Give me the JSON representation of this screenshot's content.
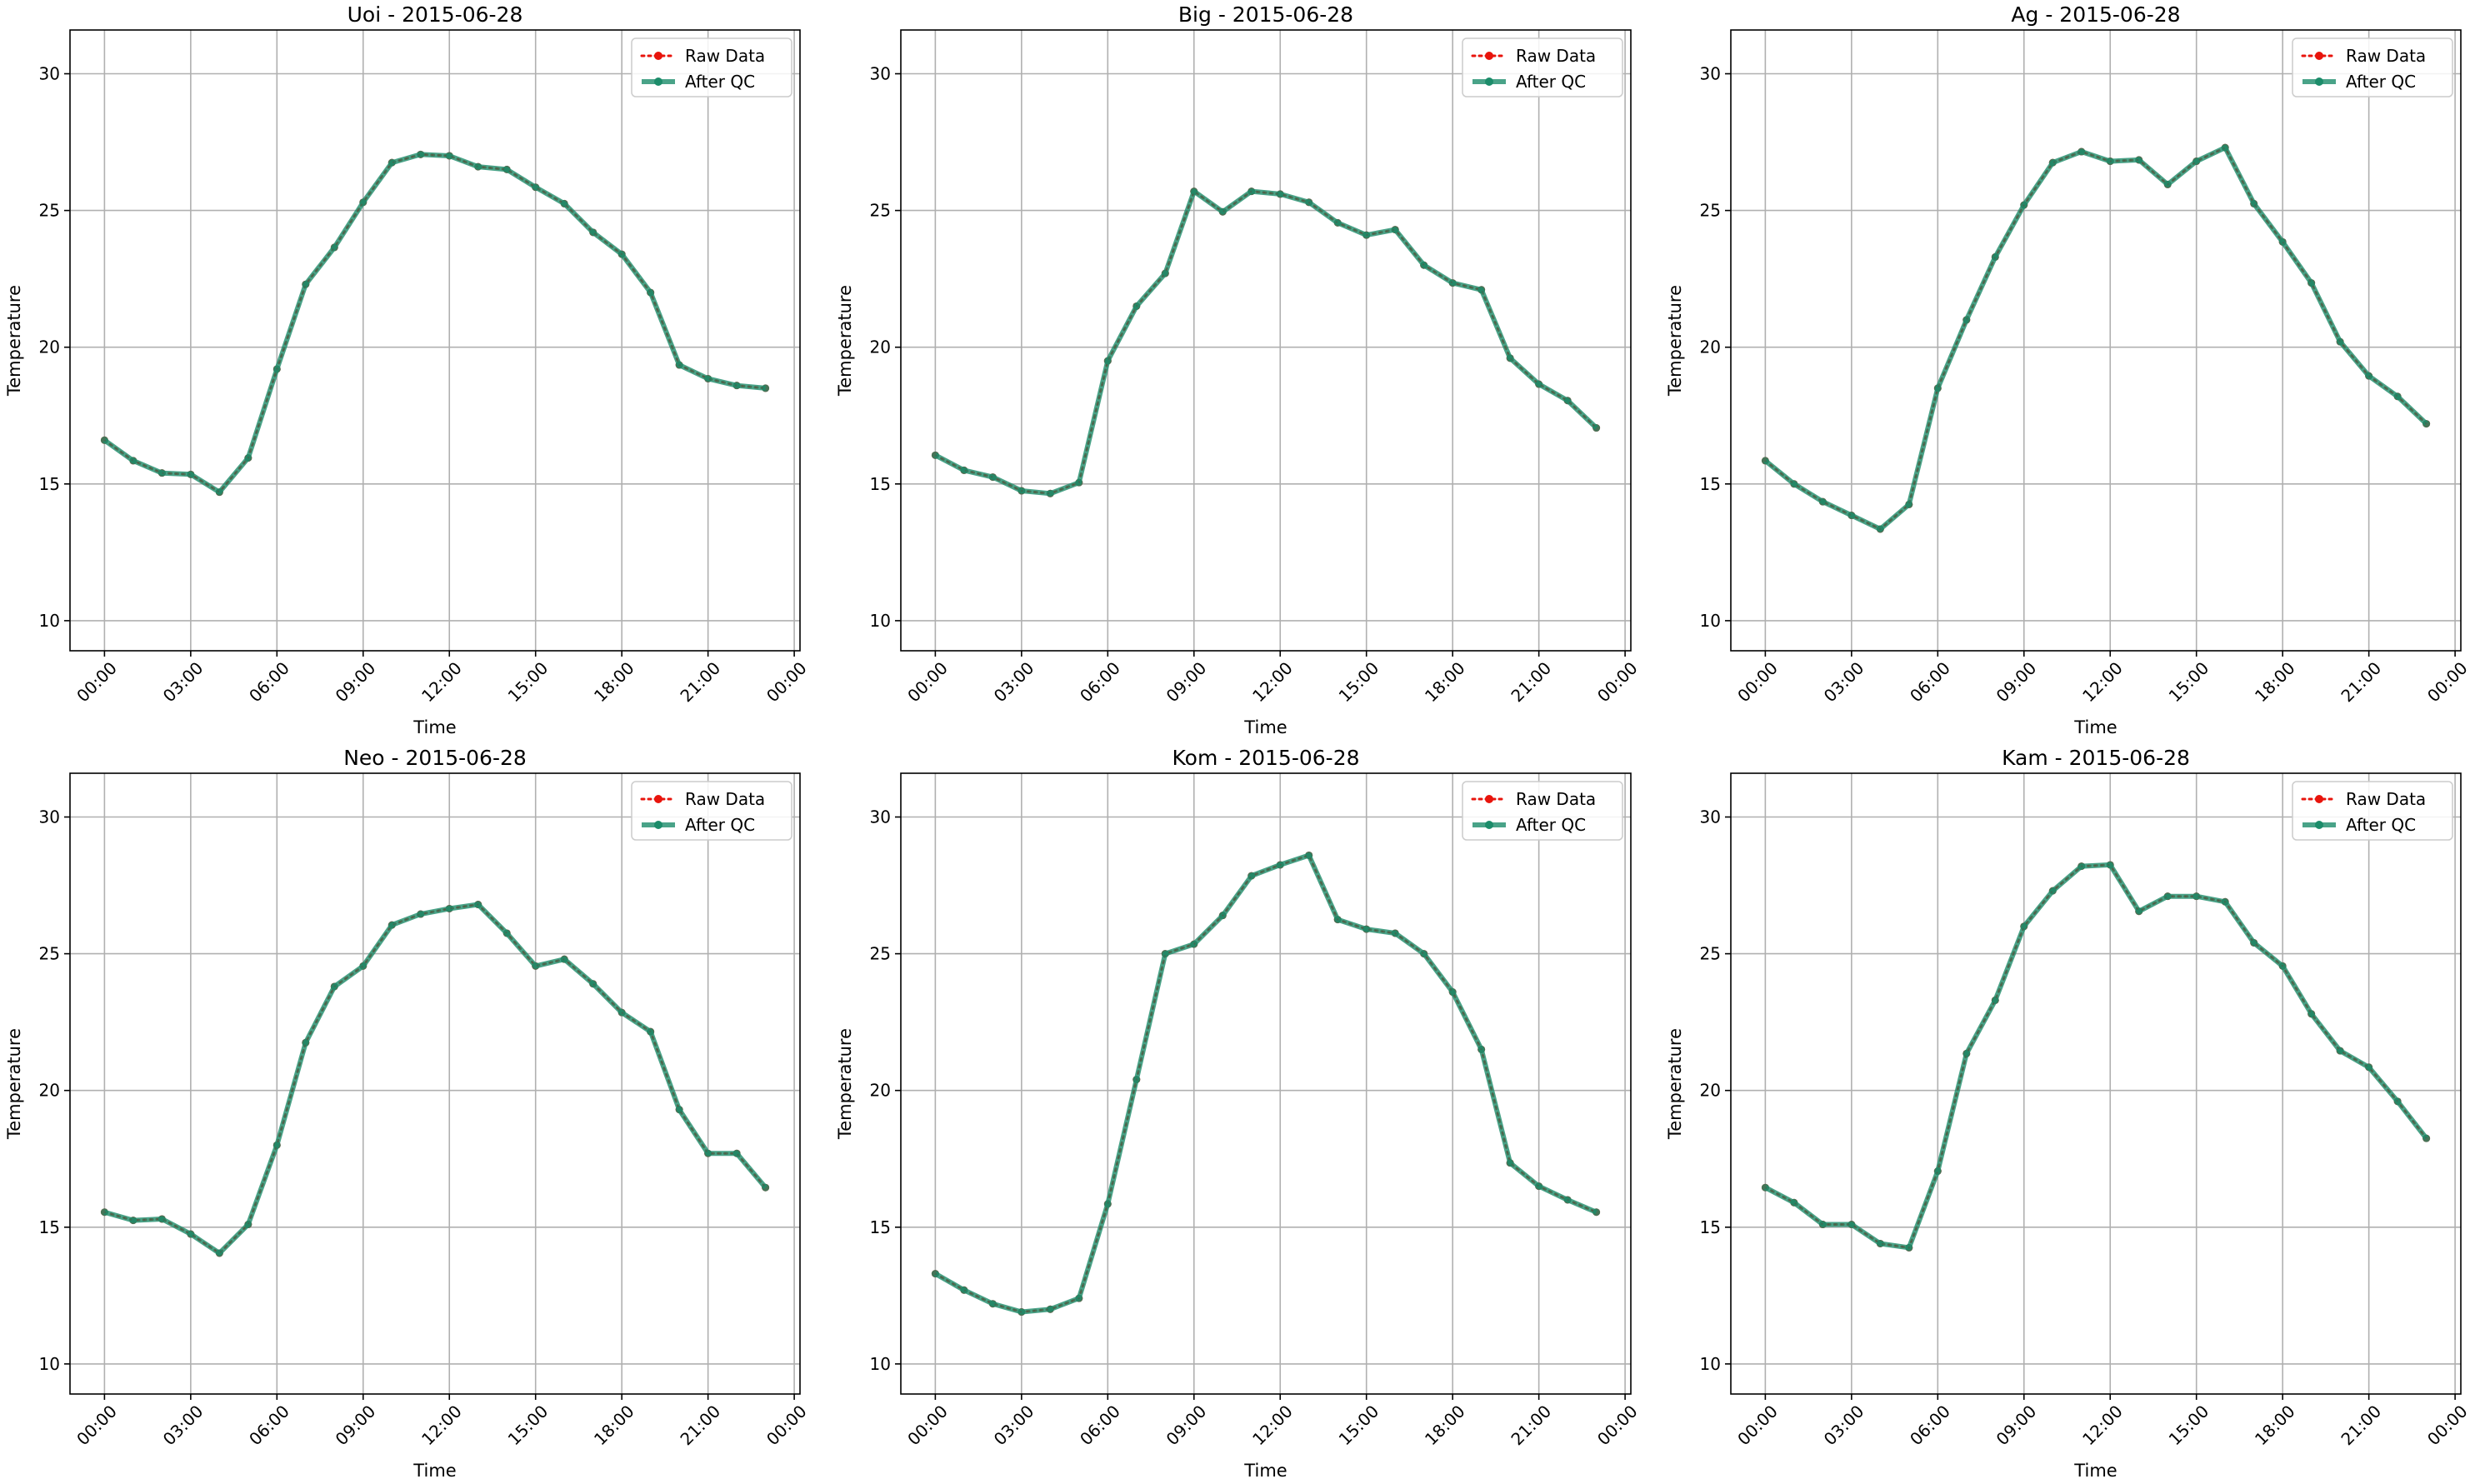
{
  "chart_data": [
    {
      "type": "line",
      "title": "Uoi - 2015-06-28",
      "xlabel": "Time",
      "ylabel": "Temperature",
      "ylim": [
        8.9,
        31.6
      ],
      "y_ticks": [
        10,
        15,
        20,
        25,
        30
      ],
      "x_ticks": [
        "00:00",
        "03:00",
        "06:00",
        "09:00",
        "12:00",
        "15:00",
        "18:00",
        "21:00",
        "00:00"
      ],
      "x_hours": [
        0,
        3,
        6,
        9,
        12,
        15,
        18,
        21,
        24
      ],
      "xlim": [
        -1.2,
        24.2
      ],
      "grid": true,
      "legend_position": "top-right",
      "x": [
        0,
        1,
        2,
        3,
        4,
        5,
        6,
        7,
        8,
        9,
        10,
        11,
        12,
        13,
        14,
        15,
        16,
        17,
        18,
        19,
        20,
        21,
        22,
        23
      ],
      "series": [
        {
          "name": "Raw Data",
          "style": "dotted-marker",
          "color": "#e8140c",
          "values": [
            16.6,
            15.85,
            15.4,
            15.35,
            14.7,
            15.95,
            19.2,
            22.3,
            23.65,
            25.3,
            26.75,
            27.05,
            27.0,
            26.6,
            26.5,
            25.85,
            25.25,
            24.2,
            23.4,
            22.0,
            19.35,
            18.85,
            18.6,
            18.5
          ]
        },
        {
          "name": "After QC",
          "style": "solid-marker",
          "color": "#1c8c6a",
          "values": [
            16.6,
            15.85,
            15.4,
            15.35,
            14.7,
            15.95,
            19.2,
            22.3,
            23.65,
            25.3,
            26.75,
            27.05,
            27.0,
            26.6,
            26.5,
            25.85,
            25.25,
            24.2,
            23.4,
            22.0,
            19.35,
            18.85,
            18.6,
            18.5
          ]
        }
      ]
    },
    {
      "type": "line",
      "title": "Big - 2015-06-28",
      "xlabel": "Time",
      "ylabel": "Temperature",
      "ylim": [
        8.9,
        31.6
      ],
      "y_ticks": [
        10,
        15,
        20,
        25,
        30
      ],
      "x_ticks": [
        "00:00",
        "03:00",
        "06:00",
        "09:00",
        "12:00",
        "15:00",
        "18:00",
        "21:00",
        "00:00"
      ],
      "x_hours": [
        0,
        3,
        6,
        9,
        12,
        15,
        18,
        21,
        24
      ],
      "xlim": [
        -1.2,
        24.2
      ],
      "grid": true,
      "legend_position": "top-right",
      "x": [
        0,
        1,
        2,
        3,
        4,
        5,
        6,
        7,
        8,
        9,
        10,
        11,
        12,
        13,
        14,
        15,
        16,
        17,
        18,
        19,
        20,
        21,
        22,
        23
      ],
      "series": [
        {
          "name": "Raw Data",
          "style": "dotted-marker",
          "color": "#e8140c",
          "values": [
            16.05,
            15.5,
            15.25,
            14.75,
            14.65,
            15.05,
            19.5,
            21.5,
            22.7,
            25.7,
            24.95,
            25.7,
            25.6,
            25.3,
            24.55,
            24.1,
            24.3,
            23.0,
            22.35,
            22.1,
            19.6,
            18.65,
            18.05,
            17.05
          ]
        },
        {
          "name": "After QC",
          "style": "solid-marker",
          "color": "#1c8c6a",
          "values": [
            16.05,
            15.5,
            15.25,
            14.75,
            14.65,
            15.05,
            19.5,
            21.5,
            22.7,
            25.7,
            24.95,
            25.7,
            25.6,
            25.3,
            24.55,
            24.1,
            24.3,
            23.0,
            22.35,
            22.1,
            19.6,
            18.65,
            18.05,
            17.05
          ]
        }
      ]
    },
    {
      "type": "line",
      "title": "Ag - 2015-06-28",
      "xlabel": "Time",
      "ylabel": "Temperature",
      "ylim": [
        8.9,
        31.6
      ],
      "y_ticks": [
        10,
        15,
        20,
        25,
        30
      ],
      "x_ticks": [
        "00:00",
        "03:00",
        "06:00",
        "09:00",
        "12:00",
        "15:00",
        "18:00",
        "21:00",
        "00:00"
      ],
      "x_hours": [
        0,
        3,
        6,
        9,
        12,
        15,
        18,
        21,
        24
      ],
      "xlim": [
        -1.2,
        24.2
      ],
      "grid": true,
      "legend_position": "top-right",
      "x": [
        0,
        1,
        2,
        3,
        4,
        5,
        6,
        7,
        8,
        9,
        10,
        11,
        12,
        13,
        14,
        15,
        16,
        17,
        18,
        19,
        20,
        21,
        22,
        23
      ],
      "series": [
        {
          "name": "Raw Data",
          "style": "dotted-marker",
          "color": "#e8140c",
          "values": [
            15.85,
            15.0,
            14.35,
            13.85,
            13.35,
            14.25,
            18.5,
            21.0,
            23.3,
            25.2,
            26.75,
            27.15,
            26.8,
            26.85,
            25.95,
            26.8,
            27.3,
            25.25,
            23.85,
            22.35,
            20.2,
            18.95,
            18.2,
            17.2
          ]
        },
        {
          "name": "After QC",
          "style": "solid-marker",
          "color": "#1c8c6a",
          "values": [
            15.85,
            15.0,
            14.35,
            13.85,
            13.35,
            14.25,
            18.5,
            21.0,
            23.3,
            25.2,
            26.75,
            27.15,
            26.8,
            26.85,
            25.95,
            26.8,
            27.3,
            25.25,
            23.85,
            22.35,
            20.2,
            18.95,
            18.2,
            17.2
          ]
        }
      ]
    },
    {
      "type": "line",
      "title": "Neo - 2015-06-28",
      "xlabel": "Time",
      "ylabel": "Temperature",
      "ylim": [
        8.9,
        31.6
      ],
      "y_ticks": [
        10,
        15,
        20,
        25,
        30
      ],
      "x_ticks": [
        "00:00",
        "03:00",
        "06:00",
        "09:00",
        "12:00",
        "15:00",
        "18:00",
        "21:00",
        "00:00"
      ],
      "x_hours": [
        0,
        3,
        6,
        9,
        12,
        15,
        18,
        21,
        24
      ],
      "xlim": [
        -1.2,
        24.2
      ],
      "grid": true,
      "legend_position": "top-right",
      "x": [
        0,
        1,
        2,
        3,
        4,
        5,
        6,
        7,
        8,
        9,
        10,
        11,
        12,
        13,
        14,
        15,
        16,
        17,
        18,
        19,
        20,
        21,
        22,
        23
      ],
      "series": [
        {
          "name": "Raw Data",
          "style": "dotted-marker",
          "color": "#e8140c",
          "values": [
            15.55,
            15.25,
            15.3,
            14.75,
            14.05,
            15.1,
            18.0,
            21.75,
            23.8,
            24.55,
            26.05,
            26.45,
            26.65,
            26.8,
            25.75,
            24.55,
            24.8,
            23.9,
            22.85,
            22.15,
            19.3,
            17.7,
            17.7,
            16.45
          ]
        },
        {
          "name": "After QC",
          "style": "solid-marker",
          "color": "#1c8c6a",
          "values": [
            15.55,
            15.25,
            15.3,
            14.75,
            14.05,
            15.1,
            18.0,
            21.75,
            23.8,
            24.55,
            26.05,
            26.45,
            26.65,
            26.8,
            25.75,
            24.55,
            24.8,
            23.9,
            22.85,
            22.15,
            19.3,
            17.7,
            17.7,
            16.45
          ]
        }
      ]
    },
    {
      "type": "line",
      "title": "Kom - 2015-06-28",
      "xlabel": "Time",
      "ylabel": "Temperature",
      "ylim": [
        8.9,
        31.6
      ],
      "y_ticks": [
        10,
        15,
        20,
        25,
        30
      ],
      "x_ticks": [
        "00:00",
        "03:00",
        "06:00",
        "09:00",
        "12:00",
        "15:00",
        "18:00",
        "21:00",
        "00:00"
      ],
      "x_hours": [
        0,
        3,
        6,
        9,
        12,
        15,
        18,
        21,
        24
      ],
      "xlim": [
        -1.2,
        24.2
      ],
      "grid": true,
      "legend_position": "top-right",
      "x": [
        0,
        1,
        2,
        3,
        4,
        5,
        6,
        7,
        8,
        9,
        10,
        11,
        12,
        13,
        14,
        15,
        16,
        17,
        18,
        19,
        20,
        21,
        22,
        23
      ],
      "series": [
        {
          "name": "Raw Data",
          "style": "dotted-marker",
          "color": "#e8140c",
          "values": [
            13.3,
            12.7,
            12.2,
            11.9,
            12.0,
            12.4,
            15.85,
            20.4,
            25.0,
            25.35,
            26.4,
            27.85,
            28.25,
            28.6,
            26.25,
            25.9,
            25.75,
            25.0,
            23.6,
            21.5,
            17.35,
            16.5,
            16.0,
            15.55
          ]
        },
        {
          "name": "After QC",
          "style": "solid-marker",
          "color": "#1c8c6a",
          "values": [
            13.3,
            12.7,
            12.2,
            11.9,
            12.0,
            12.4,
            15.85,
            20.4,
            25.0,
            25.35,
            26.4,
            27.85,
            28.25,
            28.6,
            26.25,
            25.9,
            25.75,
            25.0,
            23.6,
            21.5,
            17.35,
            16.5,
            16.0,
            15.55
          ]
        }
      ]
    },
    {
      "type": "line",
      "title": "Kam - 2015-06-28",
      "xlabel": "Time",
      "ylabel": "Temperature",
      "ylim": [
        8.9,
        31.6
      ],
      "y_ticks": [
        10,
        15,
        20,
        25,
        30
      ],
      "x_ticks": [
        "00:00",
        "03:00",
        "06:00",
        "09:00",
        "12:00",
        "15:00",
        "18:00",
        "21:00",
        "00:00"
      ],
      "x_hours": [
        0,
        3,
        6,
        9,
        12,
        15,
        18,
        21,
        24
      ],
      "xlim": [
        -1.2,
        24.2
      ],
      "grid": true,
      "legend_position": "top-right",
      "x": [
        0,
        1,
        2,
        3,
        4,
        5,
        6,
        7,
        8,
        9,
        10,
        11,
        12,
        13,
        14,
        15,
        16,
        17,
        18,
        19,
        20,
        21,
        22,
        23
      ],
      "series": [
        {
          "name": "Raw Data",
          "style": "dotted-marker",
          "color": "#e8140c",
          "values": [
            16.45,
            15.9,
            15.1,
            15.1,
            14.4,
            14.25,
            17.05,
            21.35,
            23.3,
            26.0,
            27.3,
            28.2,
            28.25,
            26.55,
            27.1,
            27.1,
            26.9,
            25.4,
            24.55,
            22.8,
            21.45,
            20.85,
            19.6,
            18.25
          ]
        },
        {
          "name": "After QC",
          "style": "solid-marker",
          "color": "#1c8c6a",
          "values": [
            16.45,
            15.9,
            15.1,
            15.1,
            14.4,
            14.25,
            17.05,
            21.35,
            23.3,
            26.0,
            27.3,
            28.2,
            28.25,
            26.55,
            27.1,
            27.1,
            26.9,
            25.4,
            24.55,
            22.8,
            21.45,
            20.85,
            19.6,
            18.25
          ]
        }
      ]
    }
  ]
}
